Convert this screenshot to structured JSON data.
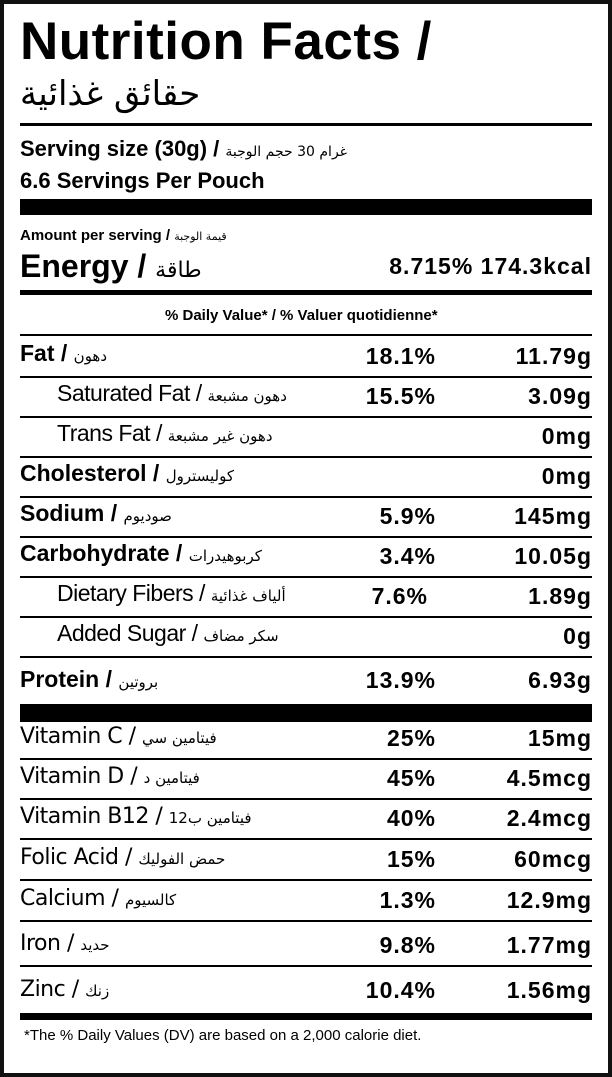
{
  "header": {
    "title": "Nutrition Facts /",
    "title_ar": "حقائق غذائية",
    "serving_size": "Serving size (30g) /",
    "serving_size_ar": "غرام 30 حجم الوجبة",
    "servings_per": "6.6 Servings Per Pouch",
    "amount_per_serving": "Amount per serving /",
    "amount_per_serving_ar": "قيمة الوجبة",
    "energy_label": "Energy /",
    "energy_label_ar": "طاقة",
    "energy_dv": "8.715%",
    "energy_value": "174.3kcal",
    "daily_value_heading": "% Daily Value* / % Valuer quotidienne*"
  },
  "nutrients": [
    {
      "label": "Fat /",
      "ar": "دهون",
      "dv": "18.1%",
      "amount": "11.79g"
    },
    {
      "label": "Saturated Fat /",
      "ar": "دهون مشبعة",
      "dv": "15.5%",
      "amount": "3.09g"
    },
    {
      "label": "Trans Fat /",
      "ar": "دهون غير مشبعة",
      "dv": "",
      "amount": "0mg"
    },
    {
      "label": "Cholesterol /",
      "ar": "كوليسترول",
      "dv": "",
      "amount": "0mg"
    },
    {
      "label": "Sodium /",
      "ar": "صوديوم",
      "dv": "5.9%",
      "amount": "145mg"
    },
    {
      "label": "Carbohydrate /",
      "ar": "كربوهيدرات",
      "dv": "3.4%",
      "amount": "10.05g"
    },
    {
      "label": "Dietary Fibers /",
      "ar": "ألياف غذائية",
      "dv": "7.6%",
      "amount": "1.89g"
    },
    {
      "label": "Added Sugar /",
      "ar": "سكر مضاف",
      "dv": "",
      "amount": "0g"
    },
    {
      "label": "Protein /",
      "ar": "بروتين",
      "dv": "13.9%",
      "amount": "6.93g"
    }
  ],
  "vitamins": [
    {
      "label": "Vitamin C /",
      "ar": "فيتامين سي",
      "dv": "25%",
      "amount": "15mg"
    },
    {
      "label": "Vitamin D /",
      "ar": "فيتامين د",
      "dv": "45%",
      "amount": "4.5mcg"
    },
    {
      "label": "Vitamin B12 /",
      "ar": "فيتامين ب12",
      "dv": "40%",
      "amount": "2.4mcg"
    },
    {
      "label": "Folic Acid /",
      "ar": "حمض الفوليك",
      "dv": "15%",
      "amount": "60mcg"
    },
    {
      "label": "Calcium /",
      "ar": "كالسيوم",
      "dv": "1.3%",
      "amount": "12.9mg"
    },
    {
      "label": "Iron /",
      "ar": "حديد",
      "dv": "9.8%",
      "amount": "1.77mg"
    },
    {
      "label": "Zinc /",
      "ar": "زنك",
      "dv": "10.4%",
      "amount": "1.56mg"
    }
  ],
  "footnote": "*The % Daily Values (DV) are based on a 2,000 calorie diet."
}
